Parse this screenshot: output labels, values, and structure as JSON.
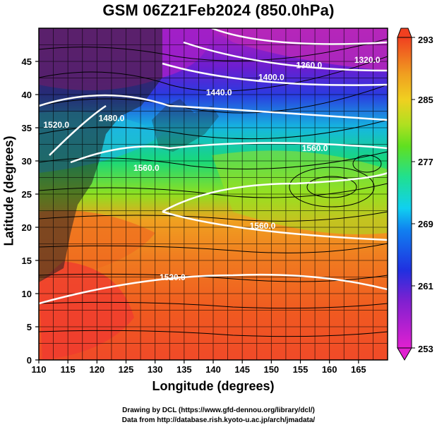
{
  "title": "GSM 06Z21Feb2024 (850.0hPa)",
  "xlabel": "Longitude (degrees)",
  "ylabel": "Latitude  (degrees)",
  "credits": [
    "Drawing by DCL (https://www.gfd-dennou.org/library/dcl/)",
    "Data from http://database.rish.kyoto-u.ac.jp/arch/jmadata/"
  ],
  "chart_data": {
    "type": "map",
    "x_ticks": [
      "110",
      "115",
      "120",
      "125",
      "130",
      "135",
      "140",
      "145",
      "150",
      "155",
      "160",
      "165"
    ],
    "x_tick_values": [
      110,
      115,
      120,
      125,
      130,
      135,
      140,
      145,
      150,
      155,
      160,
      165
    ],
    "xlim": [
      110,
      170
    ],
    "y_ticks": [
      "0",
      "5",
      "10",
      "15",
      "20",
      "25",
      "30",
      "35",
      "40",
      "45"
    ],
    "y_tick_values": [
      0,
      5,
      10,
      15,
      20,
      25,
      30,
      35,
      40,
      45
    ],
    "ylim": [
      0,
      50
    ],
    "colorbar": {
      "ticks": [
        "293",
        "285",
        "277",
        "269",
        "261",
        "253"
      ],
      "tick_values": [
        293,
        285,
        277,
        269,
        261,
        253
      ],
      "min": 253,
      "max": 293
    },
    "contour_labels": [
      {
        "text": "1320.0",
        "lon": 166.5,
        "lat": 44.8
      },
      {
        "text": "1360.0",
        "lon": 156.5,
        "lat": 44.0
      },
      {
        "text": "1400.0",
        "lon": 150.0,
        "lat": 42.2
      },
      {
        "text": "1440.0",
        "lon": 141.0,
        "lat": 39.9
      },
      {
        "text": "1480.0",
        "lon": 122.5,
        "lat": 36.0
      },
      {
        "text": "1520.0",
        "lon": 113.0,
        "lat": 35.0
      },
      {
        "text": "1560.0",
        "lon": 157.5,
        "lat": 31.5
      },
      {
        "text": "1560.0",
        "lon": 148.5,
        "lat": 19.8
      },
      {
        "text": "1520.0",
        "lon": 133.0,
        "lat": 12.0
      },
      {
        "text": "1560.0",
        "lon": 128.5,
        "lat": 28.5
      }
    ]
  }
}
